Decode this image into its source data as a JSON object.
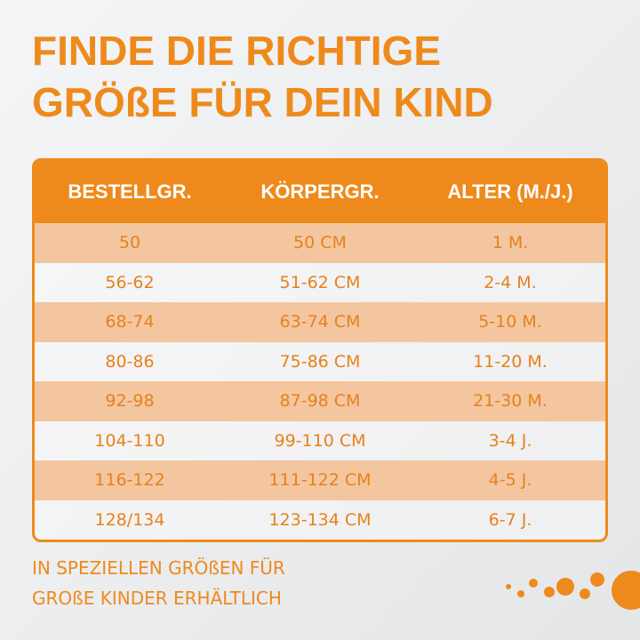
{
  "header": {
    "title_lines": [
      "FINDE DIE RICHTIGE",
      "GRÖßE FÜR DEIN KIND"
    ]
  },
  "table": {
    "columns": [
      "BESTELLGR.",
      "KÖRPERGR.",
      "ALTER (M./J.)"
    ],
    "rows": [
      [
        "50",
        "50 CM",
        "1 M."
      ],
      [
        "56-62",
        "51-62 CM",
        "2-4 M."
      ],
      [
        "68-74",
        "63-74 CM",
        "5-10 M."
      ],
      [
        "80-86",
        "75-86 CM",
        "11-20 M."
      ],
      [
        "92-98",
        "87-98 CM",
        "21-30 M."
      ],
      [
        "104-110",
        "99-110 CM",
        "3-4 J."
      ],
      [
        "116-122",
        "111-122 CM",
        "4-5 J."
      ],
      [
        "128/134",
        "123-134 CM",
        "6-7 J."
      ]
    ]
  },
  "footer": {
    "lines": [
      "IN SPEZIELLEN GRÖßEN FÜR",
      "GROßE KINDER ERHÄLTLICH"
    ]
  }
}
